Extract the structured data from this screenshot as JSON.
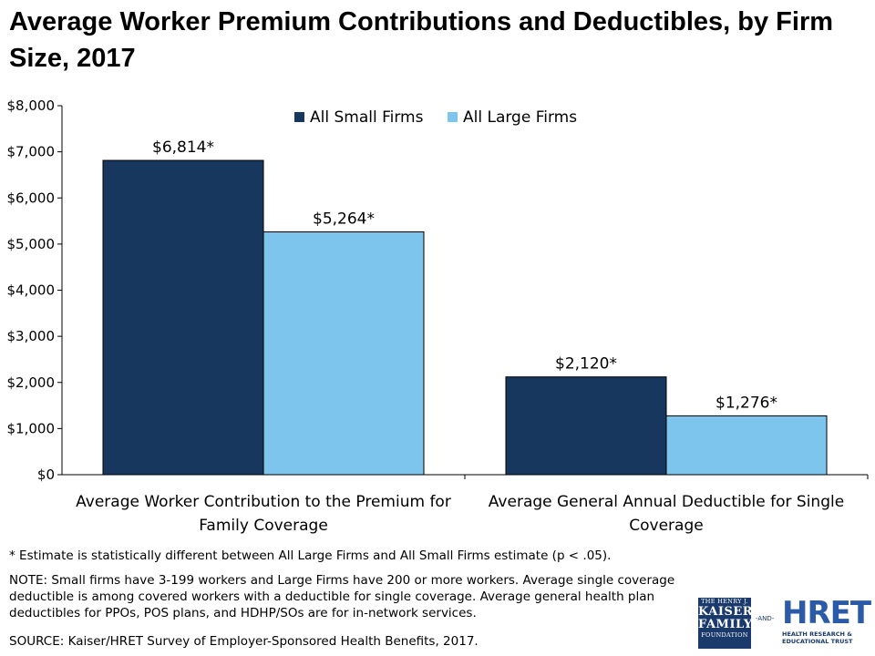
{
  "chart_data": {
    "type": "bar",
    "title": "Average Worker Premium Contributions and Deductibles, by Firm Size, 2017",
    "categories": [
      [
        "Average Worker Contribution to the Premium for",
        "Family Coverage"
      ],
      [
        "Average General Annual Deductible for Single",
        "Coverage"
      ]
    ],
    "series": [
      {
        "name": "All Small Firms",
        "color": "#17375e",
        "values": [
          6814,
          2120
        ],
        "labels": [
          "$6,814*",
          "$2,120*"
        ]
      },
      {
        "name": "All Large Firms",
        "color": "#7dc5ed",
        "values": [
          5264,
          1276
        ],
        "labels": [
          "$5,264*",
          "$1,276*"
        ]
      }
    ],
    "ylim": [
      0,
      8000
    ],
    "yticks": [
      0,
      1000,
      2000,
      3000,
      4000,
      5000,
      6000,
      7000,
      8000
    ],
    "ytick_labels": [
      "$0",
      "$1,000",
      "$2,000",
      "$3,000",
      "$4,000",
      "$5,000",
      "$6,000",
      "$7,000",
      "$8,000"
    ],
    "legend_position": "top-center",
    "xlabel": "",
    "ylabel": ""
  },
  "notes": {
    "star_note": "* Estimate is statistically different  between  All Large Firms and All Small Firms estimate (p < .05).",
    "note": "NOTE: Small firms have 3-199 workers and Large Firms have 200 or more workers. Average single coverage deductible is among covered workers with a deductible for single coverage. Average general health plan deductibles for PPOs, POS plans, and HDHP/SOs are for in-network services.",
    "source": "SOURCE:  Kaiser/HRET Survey of Employer-Sponsored Health Benefits, 2017."
  },
  "logos": {
    "kff_line1": "THE HENRY J.",
    "kff_line2": "KAISER",
    "kff_line3": "FAMILY",
    "kff_line4": "FOUNDATION",
    "and_text": "-AND-",
    "hret_word": "HRET",
    "hret_line1": "HEALTH RESEARCH &",
    "hret_line2": "EDUCATIONAL TRUST"
  }
}
